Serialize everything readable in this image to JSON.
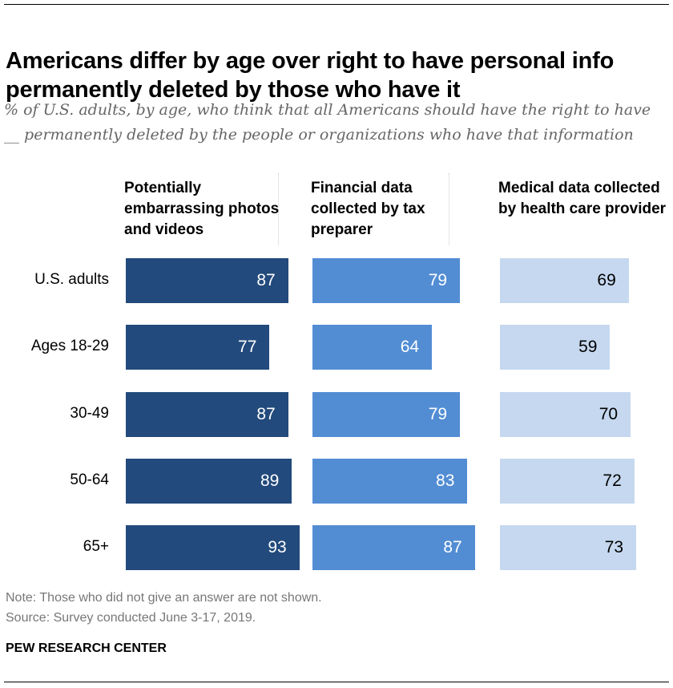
{
  "title": "Americans differ by age over right to have personal info permanently deleted by those who have it",
  "subtitle": "% of U.S. adults, by age, who think that all Americans should have the right to have __ permanently deleted by the people or organizations who have that information",
  "note": "Note: Those who did not give an answer are not shown.",
  "source": "Source: Survey conducted June 3-17, 2019.",
  "brand": "PEW RESEARCH CENTER",
  "chart_data": {
    "type": "bar",
    "orientation": "horizontal",
    "categories": [
      "U.S. adults",
      "Ages 18-29",
      "30-49",
      "50-64",
      "65+"
    ],
    "series": [
      {
        "name": "Potentially embarrassing photos and videos",
        "values": [
          87,
          77,
          87,
          89,
          93
        ],
        "color": "#224a7c",
        "label_color": "#ffffff"
      },
      {
        "name": "Financial data collected by tax preparer",
        "values": [
          79,
          64,
          79,
          83,
          87
        ],
        "color": "#528dd4",
        "label_color": "#ffffff"
      },
      {
        "name": "Medical data collected by health care provider",
        "values": [
          69,
          59,
          70,
          72,
          73
        ],
        "color": "#c5d8ef",
        "label_color": "#000000"
      }
    ],
    "xlim": [
      0,
      100
    ],
    "grid": false
  }
}
